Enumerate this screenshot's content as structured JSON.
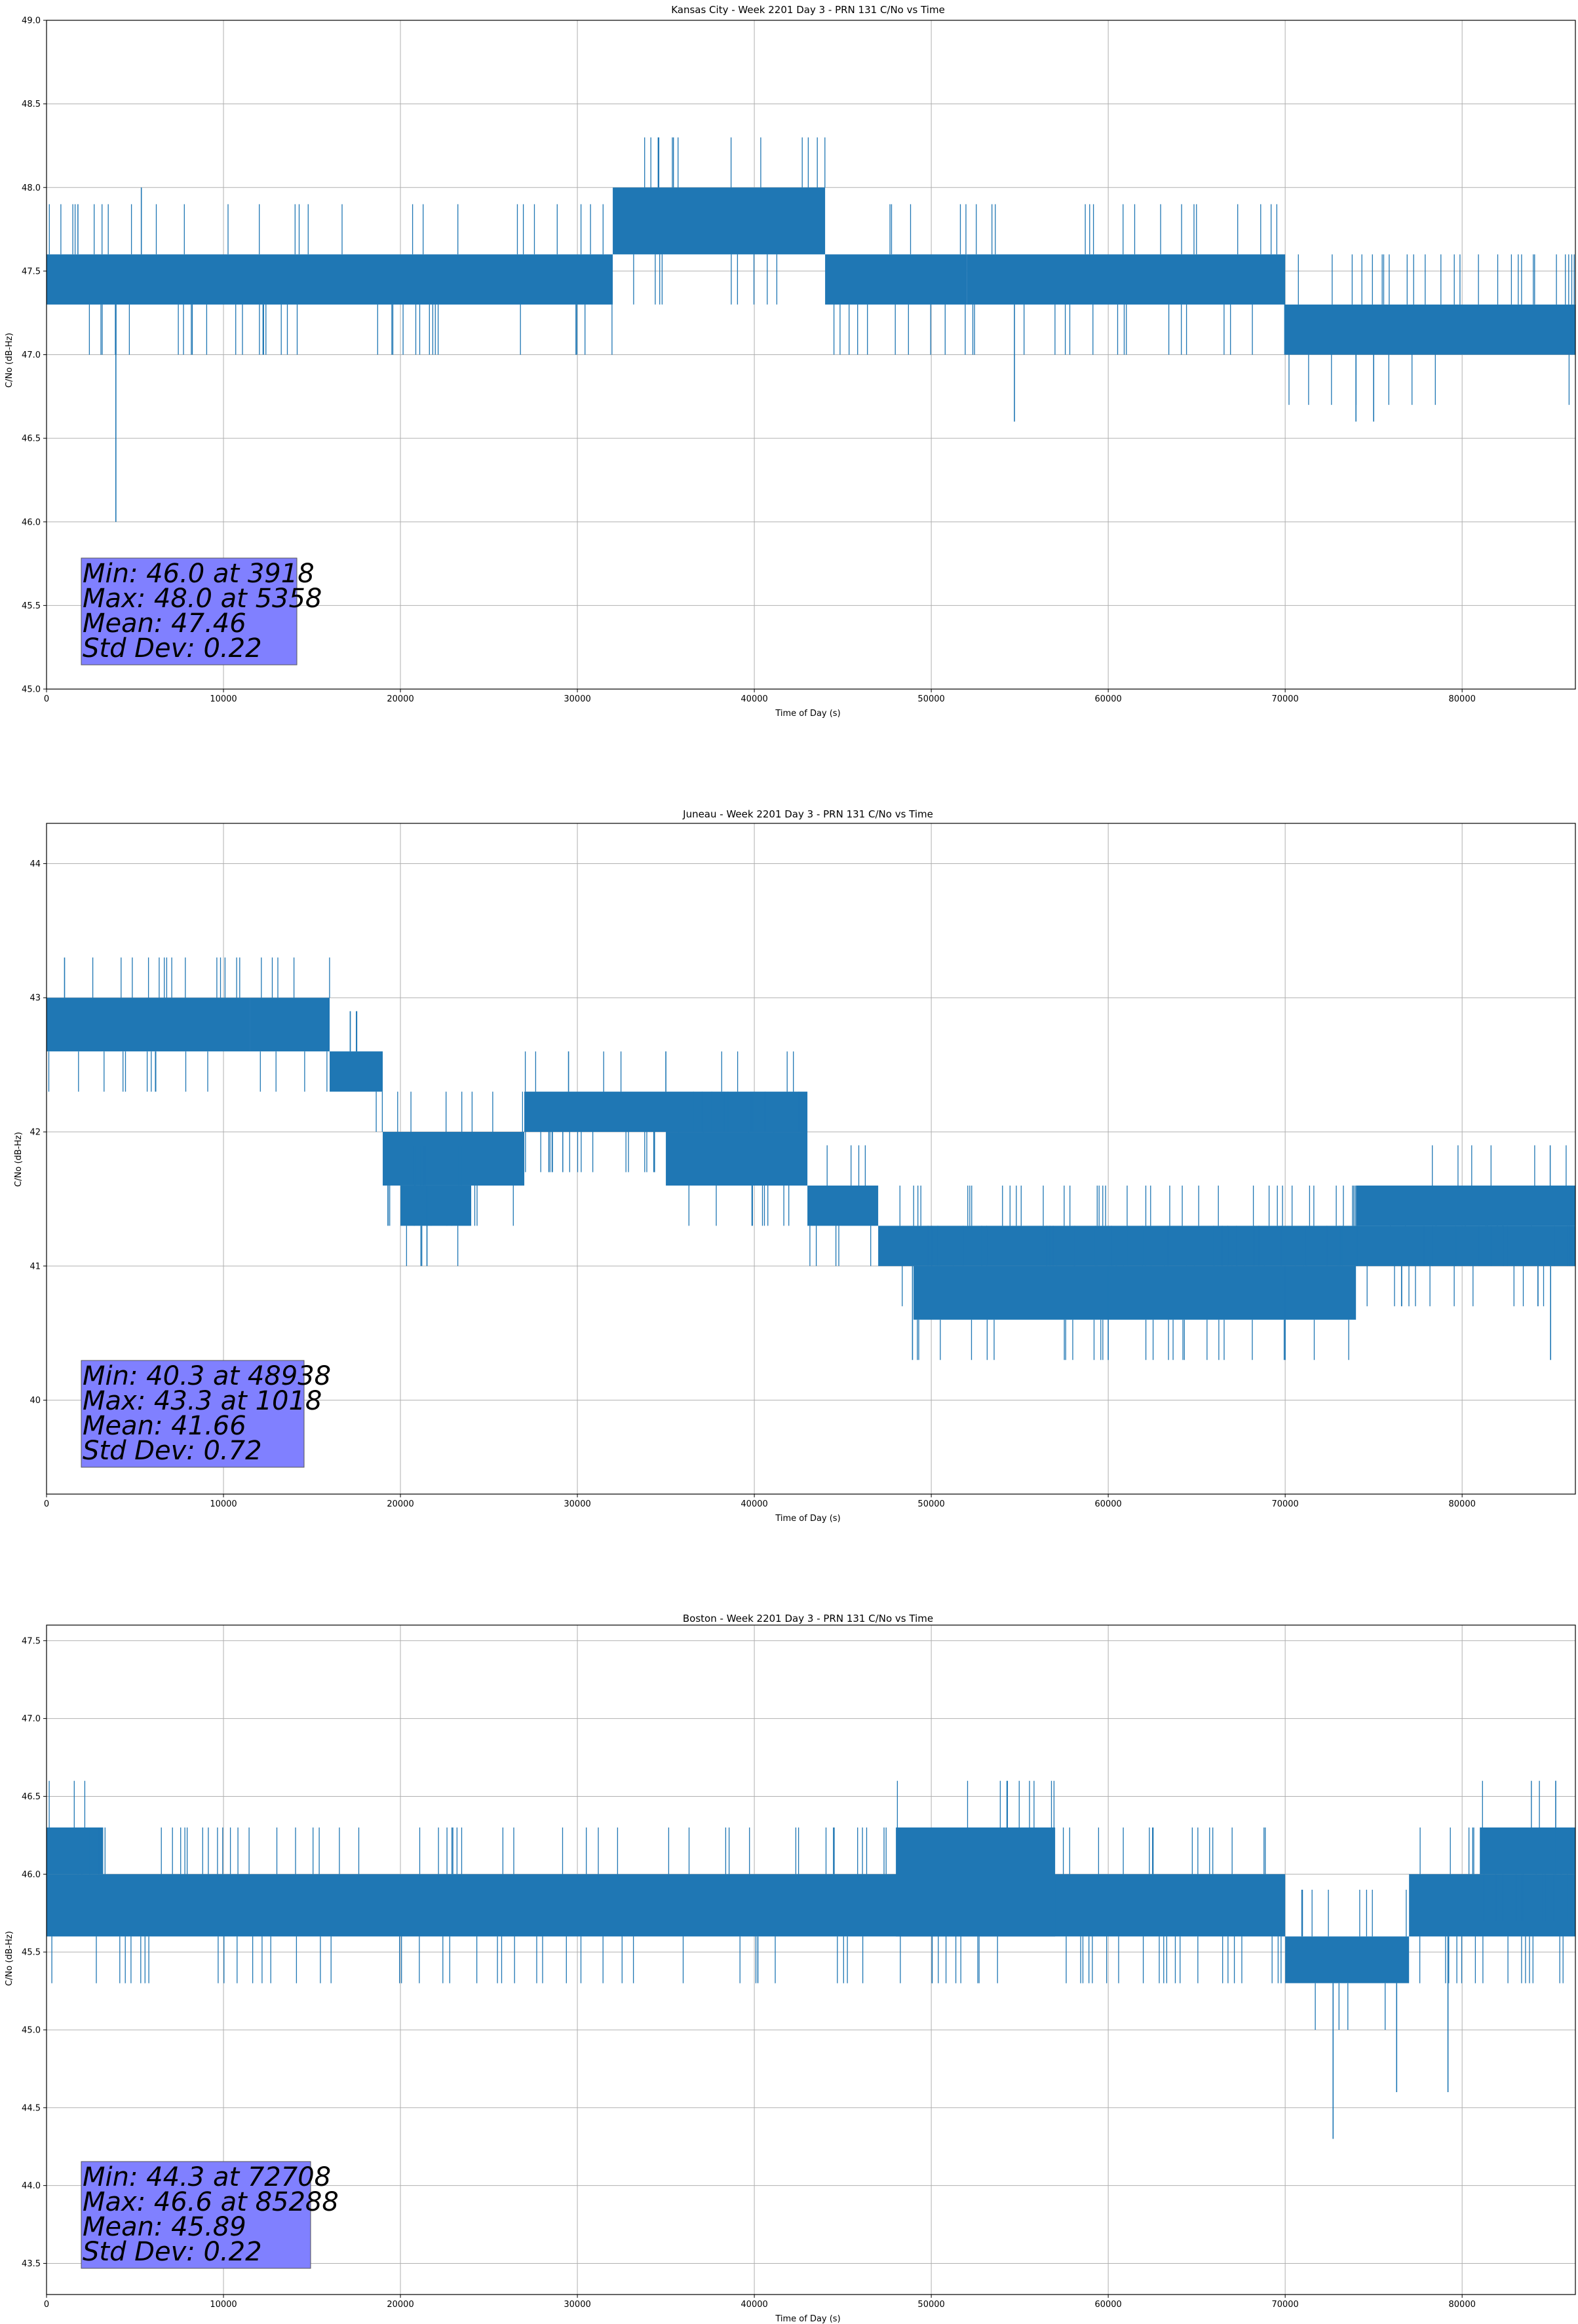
{
  "colors": {
    "series": "#1f77b4",
    "grid": "#b0b0b0",
    "stats_box": "#8080ff",
    "frame": "#000000"
  },
  "chart_data": [
    {
      "type": "line",
      "title": "Kansas City - Week 2201 Day 3 - PRN 131 C/No vs Time",
      "xlabel": "Time of Day (s)",
      "ylabel": "C/No (dB-Hz)",
      "xlim": [
        0,
        86400
      ],
      "ylim": [
        45.0,
        49.0
      ],
      "grid": true,
      "xticks": [
        0,
        10000,
        20000,
        30000,
        40000,
        50000,
        60000,
        70000,
        80000
      ],
      "xtick_labels": [
        "0",
        "10000",
        "20000",
        "30000",
        "40000",
        "50000",
        "60000",
        "70000",
        "80000"
      ],
      "yticks": [
        45.0,
        45.5,
        46.0,
        46.5,
        47.0,
        47.5,
        48.0,
        48.5,
        49.0
      ],
      "ytick_labels": [
        "45.0",
        "45.5",
        "46.0",
        "46.5",
        "47.0",
        "47.5",
        "48.0",
        "48.5",
        "49.0"
      ],
      "series": [
        {
          "color": "#1f77b4",
          "levels": [
            46.0,
            46.6,
            47.0,
            47.3,
            47.6,
            48.0
          ],
          "segments": [
            {
              "x": [
                0,
                32000
              ],
              "low": 47.3,
              "high": 47.6
            },
            {
              "x": [
                32000,
                44000
              ],
              "low": 47.6,
              "high": 48.0
            },
            {
              "x": [
                44000,
                52000
              ],
              "low": 47.3,
              "high": 47.6
            },
            {
              "x": [
                52000,
                70000
              ],
              "low": 47.3,
              "high": 47.6
            },
            {
              "x": [
                70000,
                86400
              ],
              "low": 47.0,
              "high": 47.3
            }
          ],
          "extremes": [
            {
              "x": 3918,
              "y": 46.0
            },
            {
              "x": 5358,
              "y": 48.0
            },
            {
              "x": 54700,
              "y": 46.6
            },
            {
              "x": 74000,
              "y": 46.6
            },
            {
              "x": 75000,
              "y": 46.6
            }
          ]
        }
      ],
      "stats": {
        "min": "Min: 46.0 at 3918",
        "max": "Max: 48.0 at 5358",
        "mean": "Mean: 47.46",
        "std": "Std Dev: 0.22"
      }
    },
    {
      "type": "line",
      "title": "Juneau - Week 2201 Day 3 - PRN 131 C/No vs Time",
      "xlabel": "Time of Day (s)",
      "ylabel": "C/No (dB-Hz)",
      "xlim": [
        0,
        86400
      ],
      "ylim": [
        39.3,
        44.3
      ],
      "grid": true,
      "xticks": [
        0,
        10000,
        20000,
        30000,
        40000,
        50000,
        60000,
        70000,
        80000
      ],
      "xtick_labels": [
        "0",
        "10000",
        "20000",
        "30000",
        "40000",
        "50000",
        "60000",
        "70000",
        "80000"
      ],
      "yticks": [
        40,
        41,
        42,
        43,
        44
      ],
      "ytick_labels": [
        "40",
        "41",
        "42",
        "43",
        "44"
      ],
      "series": [
        {
          "color": "#1f77b4",
          "segments": [
            {
              "x": [
                0,
                11500
              ],
              "low": 42.6,
              "high": 43.0
            },
            {
              "x": [
                11500,
                16000
              ],
              "low": 42.6,
              "high": 43.0
            },
            {
              "x": [
                16000,
                19000
              ],
              "low": 42.3,
              "high": 42.6
            },
            {
              "x": [
                19000,
                27000
              ],
              "low": 41.6,
              "high": 42.0
            },
            {
              "x": [
                20000,
                24000
              ],
              "low": 41.3,
              "high": 41.6
            },
            {
              "x": [
                27000,
                43000
              ],
              "low": 42.0,
              "high": 42.3
            },
            {
              "x": [
                35000,
                43000
              ],
              "low": 41.6,
              "high": 42.0
            },
            {
              "x": [
                43000,
                47000
              ],
              "low": 41.3,
              "high": 41.6
            },
            {
              "x": [
                47000,
                86400
              ],
              "low": 41.0,
              "high": 41.3
            },
            {
              "x": [
                49000,
                74000
              ],
              "low": 40.6,
              "high": 41.0
            },
            {
              "x": [
                74000,
                86400
              ],
              "low": 41.3,
              "high": 41.6
            }
          ],
          "extremes": [
            {
              "x": 48938,
              "y": 40.3
            },
            {
              "x": 1018,
              "y": 43.3
            },
            {
              "x": 29500,
              "y": 42.6
            },
            {
              "x": 35000,
              "y": 42.6
            },
            {
              "x": 21500,
              "y": 41.0
            },
            {
              "x": 60000,
              "y": 40.3
            },
            {
              "x": 70000,
              "y": 40.3
            },
            {
              "x": 85000,
              "y": 40.3
            }
          ]
        }
      ],
      "stats": {
        "min": "Min: 40.3 at 48938",
        "max": "Max: 43.3 at 1018",
        "mean": "Mean: 41.66",
        "std": "Std Dev: 0.72"
      }
    },
    {
      "type": "line",
      "title": "Boston - Week 2201 Day 3 - PRN 131 C/No vs Time",
      "xlabel": "Time of Day (s)",
      "ylabel": "C/No (dB-Hz)",
      "xlim": [
        0,
        86400
      ],
      "ylim": [
        43.3,
        47.6
      ],
      "grid": true,
      "xticks": [
        0,
        10000,
        20000,
        30000,
        40000,
        50000,
        60000,
        70000,
        80000
      ],
      "xtick_labels": [
        "0",
        "10000",
        "20000",
        "30000",
        "40000",
        "50000",
        "60000",
        "70000",
        "80000"
      ],
      "yticks": [
        43.5,
        44.0,
        44.5,
        45.0,
        45.5,
        46.0,
        46.5,
        47.0,
        47.5
      ],
      "ytick_labels": [
        "43.5",
        "44.0",
        "44.5",
        "45.0",
        "45.5",
        "46.0",
        "46.5",
        "47.0",
        "47.5"
      ],
      "series": [
        {
          "color": "#1f77b4",
          "segments": [
            {
              "x": [
                0,
                3200
              ],
              "low": 46.0,
              "high": 46.3
            },
            {
              "x": [
                0,
                70000
              ],
              "low": 45.6,
              "high": 46.0
            },
            {
              "x": [
                48000,
                57000
              ],
              "low": 45.6,
              "high": 46.3
            },
            {
              "x": [
                70000,
                77000
              ],
              "low": 45.3,
              "high": 45.6
            },
            {
              "x": [
                77000,
                86400
              ],
              "low": 45.6,
              "high": 46.0
            },
            {
              "x": [
                81000,
                86400
              ],
              "low": 46.0,
              "high": 46.3
            }
          ],
          "extremes": [
            {
              "x": 72708,
              "y": 44.3
            },
            {
              "x": 85288,
              "y": 46.6
            },
            {
              "x": 76300,
              "y": 44.6
            },
            {
              "x": 79200,
              "y": 44.6
            },
            {
              "x": 40200,
              "y": 45.3
            }
          ]
        }
      ],
      "stats": {
        "min": "Min: 44.3 at 72708",
        "max": "Max: 46.6 at 85288",
        "mean": "Mean: 45.89",
        "std": "Std Dev: 0.22"
      }
    }
  ]
}
